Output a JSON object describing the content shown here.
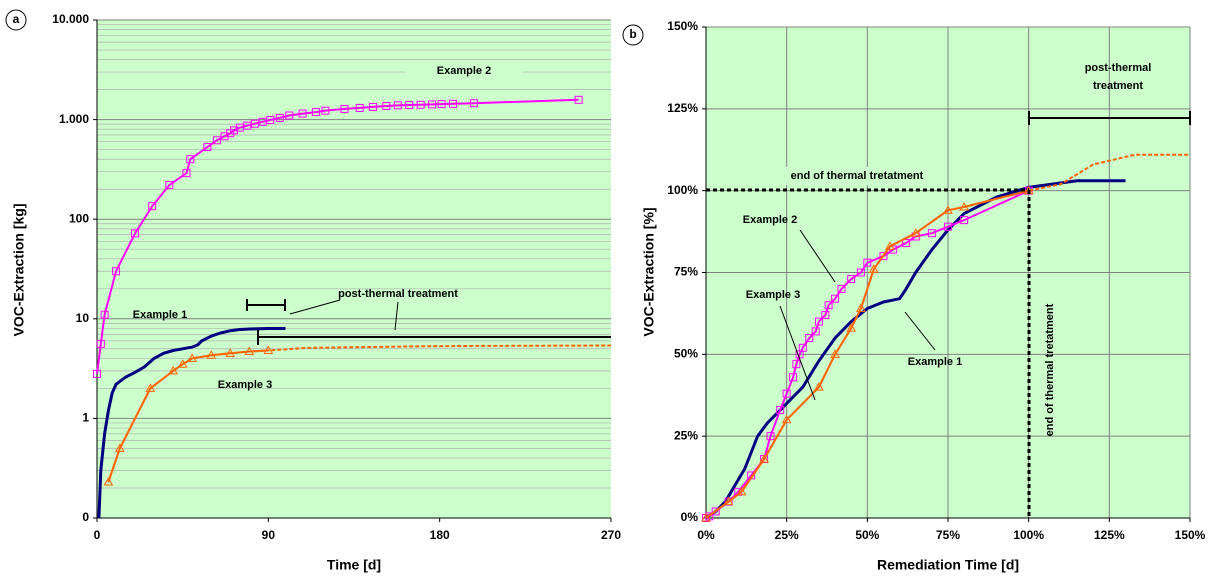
{
  "chart_data": [
    {
      "type": "line",
      "panel": "a",
      "xlabel": "Time [d]",
      "ylabel": "VOC-Extraction [kg]",
      "log_scale": true,
      "xlim": [
        0,
        270
      ],
      "xticks": [
        0,
        90,
        180,
        270
      ],
      "ylim": [
        0.1,
        10000
      ],
      "yticks": [
        {
          "value": 0.1,
          "label": "0"
        },
        1,
        10,
        100,
        {
          "value": 1000,
          "label": "1.000"
        },
        {
          "value": 10000,
          "label": "10.000"
        }
      ],
      "grid": "y",
      "background": "#ccffcc",
      "annotations": [
        "Example 2",
        "Example 1",
        "Example 3",
        "post-thermal treatment"
      ],
      "series": [
        {
          "name": "Example 2",
          "color": "#ff00ff",
          "marker": "square",
          "x": [
            0,
            2,
            4,
            10,
            20,
            29,
            38,
            47,
            49,
            58,
            63,
            67,
            70,
            72,
            75,
            79,
            83,
            87,
            91,
            96,
            101,
            108,
            115,
            120,
            130,
            138,
            145,
            152,
            158,
            164,
            170,
            176,
            181,
            187,
            198,
            253
          ],
          "values": [
            2.8,
            5.6,
            11,
            30,
            72,
            135,
            220,
            290,
            400,
            530,
            620,
            680,
            730,
            780,
            830,
            870,
            910,
            950,
            990,
            1040,
            1100,
            1150,
            1190,
            1230,
            1280,
            1310,
            1340,
            1370,
            1390,
            1400,
            1410,
            1420,
            1430,
            1440,
            1460,
            1580
          ]
        },
        {
          "name": "Example 1",
          "color": "#000080",
          "marker": "none",
          "x": [
            1,
            2,
            4,
            6,
            8,
            10,
            15,
            20,
            25,
            30,
            35,
            40,
            45,
            50,
            53,
            55,
            60,
            65,
            70,
            75,
            80,
            90,
            99
          ],
          "values": [
            0.1,
            0.3,
            0.7,
            1.2,
            1.8,
            2.2,
            2.6,
            2.9,
            3.3,
            4.0,
            4.5,
            4.8,
            5.0,
            5.2,
            5.5,
            6.0,
            6.7,
            7.2,
            7.6,
            7.8,
            7.9,
            8.0,
            8.0
          ]
        },
        {
          "name": "Example 3",
          "color": "#ff6600",
          "marker": "triangle",
          "dashed_from": 90,
          "x": [
            6,
            12,
            28,
            40,
            45,
            50,
            60,
            70,
            80,
            90,
            110,
            140,
            170,
            200,
            270
          ],
          "values": [
            0.23,
            0.5,
            2.0,
            3.0,
            3.5,
            4.0,
            4.3,
            4.5,
            4.7,
            4.8,
            5.1,
            5.2,
            5.3,
            5.35,
            5.4
          ]
        }
      ]
    },
    {
      "type": "line",
      "panel": "b",
      "xlabel": "Remediation Time [d]",
      "ylabel": "VOC-Extraction [%]",
      "log_scale": false,
      "xlim": [
        0,
        150
      ],
      "xticks": [
        {
          "value": 0,
          "label": "0%"
        },
        {
          "value": 25,
          "label": "25%"
        },
        {
          "value": 50,
          "label": "50%"
        },
        {
          "value": 75,
          "label": "75%"
        },
        {
          "value": 100,
          "label": "100%"
        },
        {
          "value": 125,
          "label": "125%"
        },
        {
          "value": 150,
          "label": "150%"
        }
      ],
      "ylim": [
        0,
        150
      ],
      "yticks": [
        {
          "value": 0,
          "label": "0%"
        },
        {
          "value": 25,
          "label": "25%"
        },
        {
          "value": 50,
          "label": "50%"
        },
        {
          "value": 75,
          "label": "75%"
        },
        {
          "value": 100,
          "label": "100%"
        },
        {
          "value": 125,
          "label": "125%"
        },
        {
          "value": 150,
          "label": "150%"
        }
      ],
      "grid": "xy",
      "background": "#ccffcc",
      "annotations": [
        "post-thermal",
        "treatment",
        "end of thermal tretatment",
        "end of thermal tretatment",
        "Example 2",
        "Example 3",
        "Example 1"
      ],
      "series": [
        {
          "name": "Example 1",
          "color": "#000080",
          "marker": "none",
          "x": [
            0,
            3,
            6,
            9,
            12,
            14,
            16,
            19,
            22,
            26,
            30,
            35,
            40,
            45,
            50,
            55,
            60,
            62,
            65,
            70,
            75,
            80,
            90,
            100,
            115,
            130
          ],
          "values": [
            0,
            2,
            5,
            10,
            15,
            20,
            25,
            29,
            32,
            36,
            40,
            48,
            55,
            60,
            64,
            66,
            67,
            70,
            75,
            82,
            88,
            93,
            98,
            101,
            103,
            103
          ]
        },
        {
          "name": "Example 2",
          "color": "#ff00ff",
          "marker": "square",
          "x": [
            0,
            1,
            3,
            7,
            10,
            14,
            18,
            20,
            23,
            25,
            27,
            28,
            29,
            30,
            32,
            34,
            35,
            37,
            38,
            40,
            42,
            45,
            48,
            50,
            55,
            58,
            62,
            65,
            70,
            75,
            80,
            100
          ],
          "values": [
            0,
            0.5,
            2,
            5,
            8,
            13,
            18,
            25,
            33,
            38,
            43,
            47,
            50,
            52,
            55,
            57,
            60,
            62,
            65,
            67,
            70,
            73,
            75,
            78,
            80,
            82,
            84,
            86,
            87,
            89,
            91,
            100
          ]
        },
        {
          "name": "Example 3",
          "color": "#ff6600",
          "marker": "triangle",
          "dashed_from": 100,
          "x": [
            0,
            7,
            11,
            18,
            25,
            35,
            40,
            45,
            48,
            52,
            57,
            65,
            75,
            80,
            100,
            110,
            120,
            133,
            150
          ],
          "values": [
            0,
            5,
            8,
            18,
            30,
            40,
            50,
            58,
            64,
            76,
            83,
            87,
            94,
            95,
            100,
            102,
            108,
            111,
            111
          ]
        }
      ]
    }
  ]
}
